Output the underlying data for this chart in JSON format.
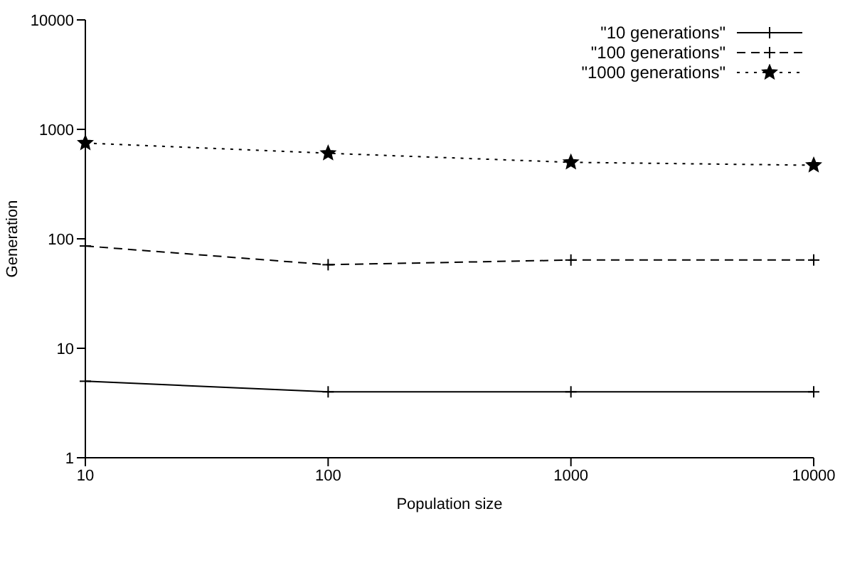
{
  "chart_data": {
    "type": "line",
    "xlabel": "Population size",
    "ylabel": "Generation",
    "x": [
      10,
      100,
      1000,
      10000
    ],
    "series": [
      {
        "name": "\"10 generations\"",
        "color": "#000000",
        "values": [
          5,
          4,
          4,
          4
        ],
        "line_style": "solid",
        "marker": "cross"
      },
      {
        "name": "\"100 generations\"",
        "color": "#000000",
        "values": [
          86,
          58,
          64,
          64
        ],
        "line_style": "dashed",
        "marker": "cross"
      },
      {
        "name": "\"1000 generations\"",
        "color": "#000000",
        "values": [
          750,
          605,
          500,
          470
        ],
        "line_style": "dotted",
        "marker": "star"
      }
    ],
    "log": "xy",
    "xlim": [
      10,
      10000
    ],
    "xticks": [
      10,
      100,
      1000,
      10000
    ],
    "ylim": [
      1,
      10000
    ],
    "yticks": [
      1,
      10,
      100,
      1000,
      10000
    ],
    "grid": false,
    "legend": "top right"
  }
}
